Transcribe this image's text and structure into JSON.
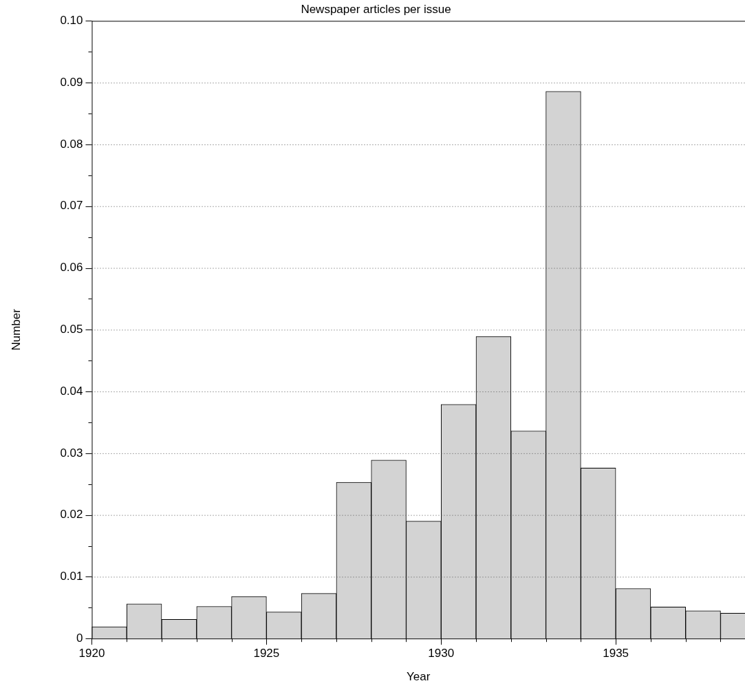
{
  "chart_data": {
    "type": "histogram",
    "title": "Newspaper articles per issue",
    "xlabel": "Year",
    "ylabel": "Number",
    "bins": [
      1920,
      1921,
      1922,
      1923,
      1924,
      1925,
      1926,
      1927,
      1928,
      1929,
      1930,
      1931,
      1932,
      1933,
      1934,
      1935,
      1936,
      1937,
      1938,
      1939
    ],
    "values": [
      0.0019,
      0.0056,
      0.0031,
      0.0052,
      0.0068,
      0.0043,
      0.0073,
      0.0253,
      0.0289,
      0.019,
      0.0379,
      0.0489,
      0.0336,
      0.0886,
      0.0276,
      0.0081,
      0.0051,
      0.0045,
      0.0041
    ],
    "color": "#d3d3d3",
    "xlim": [
      1920,
      1938.7
    ],
    "xticks": [
      1920,
      {
        "value": 1921,
        "label": null
      },
      {
        "value": 1922,
        "label": null
      },
      {
        "value": 1923,
        "label": null
      },
      {
        "value": 1924,
        "label": null
      },
      1925,
      {
        "value": 1926,
        "label": null
      },
      {
        "value": 1927,
        "label": null
      },
      {
        "value": 1928,
        "label": null
      },
      {
        "value": 1929,
        "label": null
      },
      1930,
      {
        "value": 1931,
        "label": null
      },
      {
        "value": 1932,
        "label": null
      },
      {
        "value": 1933,
        "label": null
      },
      {
        "value": 1934,
        "label": null
      },
      1935,
      {
        "value": 1936,
        "label": null
      },
      {
        "value": 1937,
        "label": null
      },
      {
        "value": 1938,
        "label": null
      }
    ],
    "ylim": [
      0,
      0.1
    ],
    "yticks": [
      0,
      {
        "value": 0.005,
        "label": null
      },
      0.01,
      {
        "value": 0.015,
        "label": null
      },
      0.02,
      {
        "value": 0.025,
        "label": null
      },
      0.03,
      {
        "value": 0.035,
        "label": null
      },
      0.04,
      {
        "value": 0.045,
        "label": null
      },
      0.05,
      {
        "value": 0.055,
        "label": null
      },
      0.06,
      {
        "value": 0.065,
        "label": null
      },
      0.07,
      {
        "value": 0.075,
        "label": null
      },
      0.08,
      {
        "value": 0.085,
        "label": null
      },
      0.09,
      {
        "value": 0.095,
        "label": null
      },
      {
        "value": 0.1,
        "label": "0.10"
      }
    ],
    "grid": "y"
  }
}
